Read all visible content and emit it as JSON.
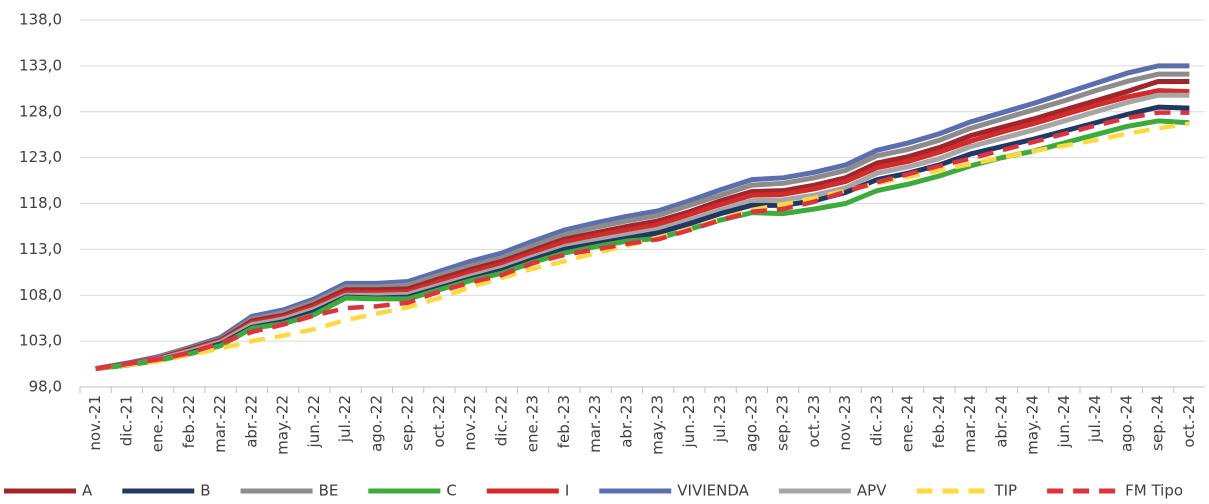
{
  "chart_data": {
    "type": "line",
    "categories": [
      "nov.-21",
      "dic.-21",
      "ene.-22",
      "feb.-22",
      "mar.-22",
      "abr.-22",
      "may.-22",
      "jun.-22",
      "jul.-22",
      "ago.-22",
      "sep.-22",
      "oct.-22",
      "nov.-22",
      "dic.-22",
      "ene.-23",
      "feb.-23",
      "mar.-23",
      "abr.-23",
      "may.-23",
      "jun.-23",
      "jul.-23",
      "ago.-23",
      "sep.-23",
      "oct.-23",
      "nov.-23",
      "dic.-23",
      "ene.-24",
      "feb.-24",
      "mar.-24",
      "abr.-24",
      "may.-24",
      "jun.-24",
      "jul.-24",
      "ago.-24",
      "sep.-24",
      "oct.-24"
    ],
    "ylim": [
      98,
      138
    ],
    "yticks": [
      {
        "value": 98,
        "label": "98,0"
      },
      {
        "value": 103,
        "label": "103,0"
      },
      {
        "value": 108,
        "label": "108,0"
      },
      {
        "value": 113,
        "label": "113,0"
      },
      {
        "value": 118,
        "label": "118,0"
      },
      {
        "value": 123,
        "label": "123,0"
      },
      {
        "value": 128,
        "label": "128,0"
      },
      {
        "value": 133,
        "label": "133,0"
      },
      {
        "value": 138,
        "label": "138,0"
      }
    ],
    "grid": true,
    "legend": "bottom",
    "series": [
      {
        "name": "VIVIENDA",
        "color": "#5b6fae",
        "dash": false,
        "values": [
          100,
          100.6,
          101.3,
          102.3,
          103.4,
          105.7,
          106.4,
          107.6,
          109.3,
          109.3,
          109.5,
          110.6,
          111.7,
          112.6,
          113.9,
          115.1,
          115.9,
          116.6,
          117.2,
          118.3,
          119.5,
          120.6,
          120.8,
          121.4,
          122.2,
          123.8,
          124.6,
          125.6,
          126.9,
          127.9,
          128.9,
          130.0,
          131.1,
          132.2,
          133.0,
          133.0
        ]
      },
      {
        "name": "BE",
        "color": "#8c8c8c",
        "dash": false,
        "values": [
          100,
          100.5,
          101.2,
          102.2,
          103.2,
          105.4,
          106.1,
          107.3,
          108.9,
          108.9,
          109.1,
          110.2,
          111.2,
          112.1,
          113.4,
          114.6,
          115.4,
          116.1,
          116.7,
          117.8,
          118.9,
          120.0,
          120.2,
          120.8,
          121.6,
          123.2,
          123.9,
          124.9,
          126.2,
          127.2,
          128.2,
          129.2,
          130.3,
          131.3,
          132.1,
          132.1
        ]
      },
      {
        "name": "A",
        "color": "#a0262b",
        "dash": false,
        "values": [
          100,
          100.5,
          101.1,
          102.1,
          103.1,
          105.2,
          105.8,
          107.0,
          108.6,
          108.6,
          108.7,
          109.8,
          110.8,
          111.7,
          112.9,
          114.1,
          114.8,
          115.5,
          116.1,
          117.1,
          118.3,
          119.3,
          119.4,
          120.0,
          120.8,
          122.4,
          123.1,
          124.1,
          125.4,
          126.3,
          127.2,
          128.2,
          129.2,
          130.2,
          131.3,
          131.3
        ]
      },
      {
        "name": "I",
        "color": "#d42a2a",
        "dash": false,
        "values": [
          100,
          100.5,
          101.1,
          102.0,
          103.0,
          105.0,
          105.6,
          106.8,
          108.3,
          108.3,
          108.4,
          109.5,
          110.5,
          111.4,
          112.6,
          113.8,
          114.5,
          115.1,
          115.7,
          116.8,
          117.9,
          118.9,
          119.0,
          119.6,
          120.4,
          121.9,
          122.6,
          123.6,
          124.8,
          125.8,
          126.7,
          127.7,
          128.7,
          129.6,
          130.3,
          130.2
        ]
      },
      {
        "name": "APV",
        "color": "#a6a6a6",
        "dash": false,
        "values": [
          100,
          100.4,
          101.0,
          101.9,
          102.9,
          104.8,
          105.4,
          106.5,
          108.0,
          108.0,
          108.1,
          109.1,
          110.1,
          111.0,
          112.2,
          113.3,
          114.0,
          114.6,
          115.2,
          116.2,
          117.3,
          118.3,
          118.4,
          118.9,
          119.7,
          121.3,
          122.0,
          122.9,
          124.2,
          125.1,
          126.0,
          127.0,
          128.0,
          129.0,
          129.8,
          129.8
        ]
      },
      {
        "name": "B",
        "color": "#1f3864",
        "dash": false,
        "values": [
          100,
          100.4,
          100.9,
          101.7,
          102.7,
          104.5,
          105.1,
          106.2,
          107.8,
          107.7,
          107.8,
          108.8,
          109.8,
          110.7,
          111.9,
          113.0,
          113.6,
          114.2,
          114.8,
          115.8,
          116.9,
          117.8,
          117.8,
          118.3,
          119.2,
          120.6,
          121.3,
          122.2,
          123.4,
          124.2,
          125.0,
          125.9,
          126.8,
          127.7,
          128.5,
          128.4
        ]
      },
      {
        "name": "C",
        "color": "#3dab3b",
        "dash": false,
        "values": [
          100,
          100.4,
          100.9,
          101.6,
          102.5,
          104.4,
          104.9,
          105.9,
          107.7,
          107.6,
          107.6,
          108.6,
          109.6,
          110.4,
          111.6,
          112.6,
          113.3,
          113.9,
          114.2,
          115.2,
          116.2,
          117.0,
          116.9,
          117.4,
          118.0,
          119.4,
          120.1,
          121.0,
          122.1,
          123.0,
          123.7,
          124.6,
          125.5,
          126.4,
          127.0,
          126.8
        ]
      },
      {
        "name": "TIP",
        "color": "#ffd93f",
        "dash": true,
        "values": [
          100,
          100.4,
          100.8,
          101.5,
          102.2,
          103.0,
          103.6,
          104.3,
          105.3,
          106.0,
          106.7,
          107.7,
          108.9,
          109.9,
          110.9,
          111.7,
          112.6,
          113.4,
          114.3,
          115.2,
          116.3,
          117.3,
          117.9,
          118.6,
          119.4,
          120.2,
          120.9,
          121.6,
          122.3,
          123.0,
          123.7,
          124.3,
          124.9,
          125.6,
          126.2,
          126.7
        ]
      },
      {
        "name": "FM Tipo",
        "color": "#e0323c",
        "dash": true,
        "values": [
          100,
          100.5,
          101.0,
          101.7,
          102.8,
          104.0,
          104.8,
          105.8,
          106.6,
          106.8,
          107.2,
          108.4,
          109.4,
          110.2,
          111.5,
          112.4,
          113.0,
          113.6,
          114.1,
          115.1,
          116.2,
          117.1,
          117.4,
          118.2,
          119.3,
          120.3,
          121.2,
          122.1,
          122.9,
          123.8,
          124.7,
          125.6,
          126.5,
          127.3,
          127.9,
          127.9
        ]
      }
    ]
  }
}
